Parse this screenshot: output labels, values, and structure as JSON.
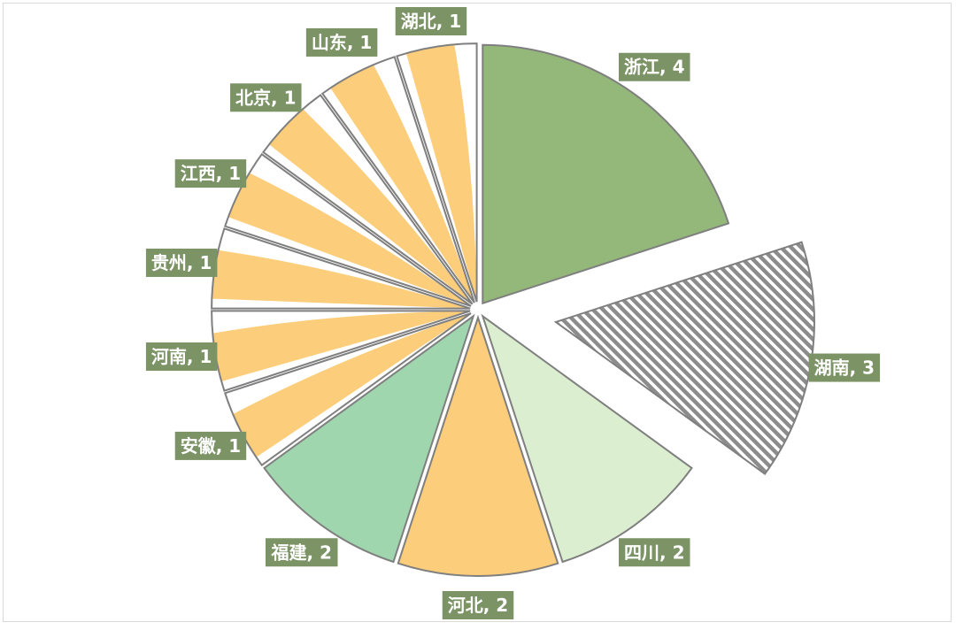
{
  "chart_data": {
    "type": "pie",
    "title": "",
    "slices": [
      {
        "label": "浙江",
        "value": 4,
        "fill": "#93b87a",
        "pattern": "solid",
        "exploded": false
      },
      {
        "label": "湖南",
        "value": 3,
        "fill": "#8c8c8c",
        "pattern": "diagonal-stripes",
        "exploded": true
      },
      {
        "label": "四川",
        "value": 2,
        "fill": "#dbeed0",
        "pattern": "solid",
        "exploded": false
      },
      {
        "label": "河北",
        "value": 2,
        "fill": "#fccd7a",
        "pattern": "solid",
        "exploded": false
      },
      {
        "label": "福建",
        "value": 2,
        "fill": "#9fd6ae",
        "pattern": "solid",
        "exploded": false
      },
      {
        "label": "安徽",
        "value": 1,
        "fill": "#fccd7a",
        "pattern": "wave-white-top",
        "exploded": false
      },
      {
        "label": "河南",
        "value": 1,
        "fill": "#fccd7a",
        "pattern": "wave-white-top",
        "exploded": false
      },
      {
        "label": "贵州",
        "value": 1,
        "fill": "#fccd7a",
        "pattern": "wave-white-top",
        "exploded": false
      },
      {
        "label": "江西",
        "value": 1,
        "fill": "#fccd7a",
        "pattern": "wave-white-top",
        "exploded": false
      },
      {
        "label": "北京",
        "value": 1,
        "fill": "#fccd7a",
        "pattern": "wave-white-top",
        "exploded": false
      },
      {
        "label": "山东",
        "value": 1,
        "fill": "#fccd7a",
        "pattern": "wave-white-top",
        "exploded": false
      },
      {
        "label": "湖北",
        "value": 1,
        "fill": "#fccd7a",
        "pattern": "wave-white-top",
        "exploded": false
      }
    ],
    "data_labels": [
      "浙江, 4",
      "湖南, 3",
      "四川, 2",
      "河北, 2",
      "福建, 2",
      "安徽, 1",
      "河南, 1",
      "贵州, 1",
      "江西, 1",
      "北京, 1",
      "山东, 1",
      "湖北, 1"
    ],
    "label_background": "#7b9365",
    "label_text_color": "#ffffff",
    "slice_border_color": "#7f7f7f",
    "legend": "none"
  }
}
